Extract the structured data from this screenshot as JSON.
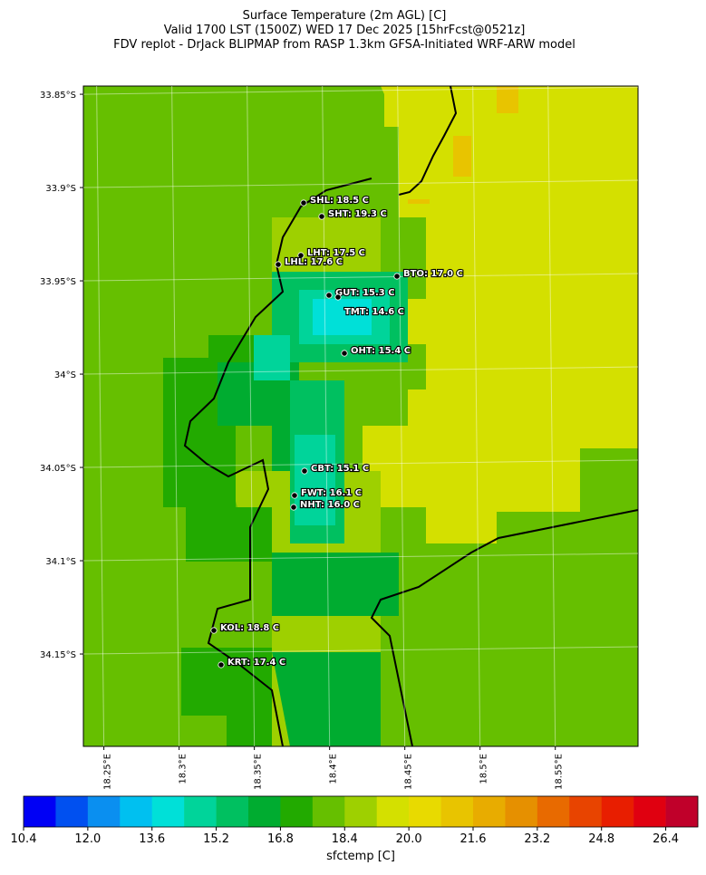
{
  "title": [
    "Surface Temperature (2m AGL) [C]",
    "Valid 1700 LST (1500Z) WED 17 Dec 2025 [15hrFcst@0521z]",
    "FDV replot - DrJack BLIPMAP from RASP 1.3km GFSA-Initiated WRF-ARW model"
  ],
  "map": {
    "xlim": [
      18.2412,
      18.6098
    ],
    "ylim": [
      -33.8456,
      -34.1995
    ],
    "xticks": [
      {
        "value": 18.25,
        "label": "18.25°E"
      },
      {
        "value": 18.3,
        "label": "18.3°E"
      },
      {
        "value": 18.35,
        "label": "18.35°E"
      },
      {
        "value": 18.4,
        "label": "18.4°E"
      },
      {
        "value": 18.45,
        "label": "18.45°E"
      },
      {
        "value": 18.5,
        "label": "18.5°E"
      },
      {
        "value": 18.55,
        "label": "18.55°E"
      }
    ],
    "yticks": [
      {
        "value": -33.85,
        "label": "33.85°S"
      },
      {
        "value": -33.9,
        "label": "33.9°S"
      },
      {
        "value": -33.95,
        "label": "33.95°S"
      },
      {
        "value": -34,
        "label": "34°S"
      },
      {
        "value": -34.05,
        "label": "34.05°S"
      },
      {
        "value": -34.1,
        "label": "34.1°S"
      },
      {
        "value": -34.15,
        "label": "34.15°S"
      }
    ],
    "stations": [
      "SHL: 18.5 C",
      "SHT: 19.3 C",
      "LHT: 17.5 C",
      "LHL: 17.6 C",
      "BTO: 17.0 C",
      "GUT: 15.3 C",
      "TMT: 14.6 C",
      "OHT: 15.4 C",
      "CBT: 15.1 C",
      "FWT: 16.1 C",
      "NHT: 16.0 C",
      "KOL: 18.8 C",
      "KRT: 17.4 C"
    ]
  },
  "colorbar": {
    "label": "sfctemp [C]",
    "lim": [
      10.4,
      27.2
    ],
    "ticks": [
      10.4,
      {
        "value": 12,
        "label": "12.0"
      },
      13.6,
      15.2,
      16.8,
      18.4,
      {
        "value": 20,
        "label": "20.0"
      },
      21.6,
      23.2,
      24.8,
      26.4
    ],
    "colors": [
      "#0000f5",
      "#0050f0",
      "#0a8ff0",
      "#00c0f0",
      "#00e0d8",
      "#00d49a",
      "#00c060",
      "#00ac30",
      "#22aa00",
      "#66bf00",
      "#9ed000",
      "#d4e000",
      "#e8da00",
      "#e8c400",
      "#e8ac00",
      "#e69000",
      "#e86a00",
      "#e84400",
      "#e81e00",
      "#e00010",
      "#c0002a"
    ]
  }
}
